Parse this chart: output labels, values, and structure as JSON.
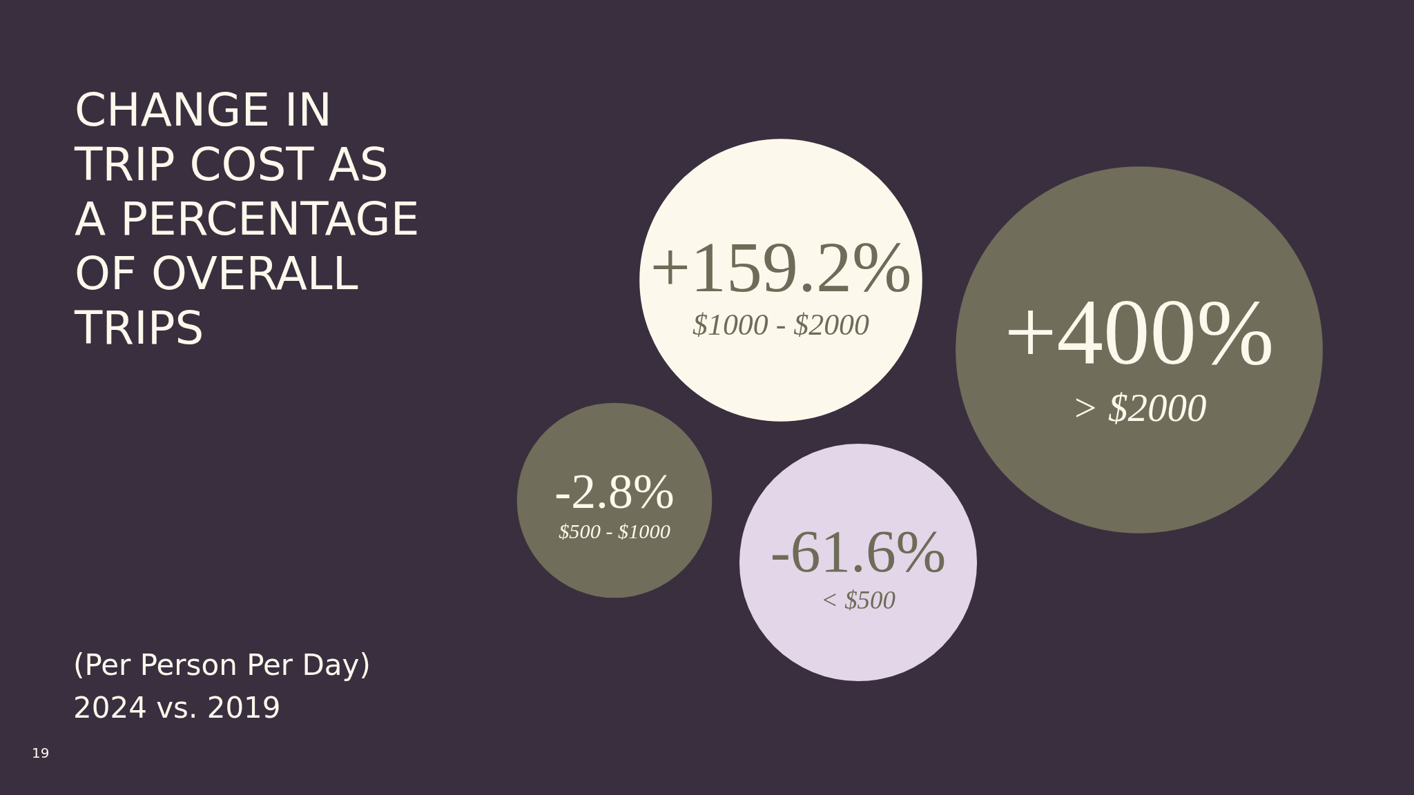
{
  "chart_data": {
    "type": "other",
    "title": "CHANGE IN TRIP COST AS A PERCENTAGE OF OVERALL TRIPS",
    "subtitle": "(Per Person Per Day)\n2024 vs. 2019",
    "annotations": [
      "19"
    ],
    "categories": [
      "$1000 - $2000",
      "> $2000",
      "$500 - $1000",
      "< $500"
    ],
    "values": [
      159.2,
      400,
      -2.8,
      -61.6
    ],
    "value_labels": [
      "+159.2%",
      "+400%",
      "-2.8%",
      "-61.6%"
    ],
    "colors": [
      "#fcf9ec",
      "#706d5a",
      "#706d5a",
      "#e2d6e8"
    ]
  }
}
